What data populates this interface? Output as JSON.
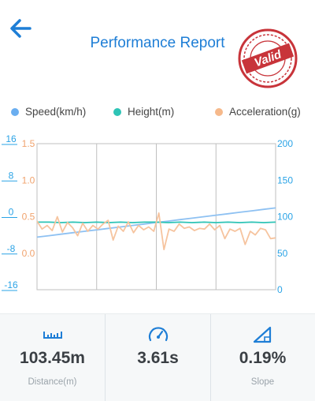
{
  "header": {
    "title": "Performance Report",
    "seal_text": "Valid"
  },
  "legend": [
    {
      "label": "Speed(km/h)",
      "color": "#6aaef0"
    },
    {
      "label": "Height(m)",
      "color": "#2ec4b6"
    },
    {
      "label": "Acceleration(g)",
      "color": "#f6b98b"
    }
  ],
  "chart_data": {
    "type": "line",
    "y_axes": {
      "height": {
        "ticks": [
          "16",
          "8",
          "0",
          "-8",
          "-16"
        ],
        "range": [
          -16,
          16
        ],
        "color": "#2aa3e6"
      },
      "acceleration": {
        "ticks": [
          "1.5",
          "1.0",
          "0.5",
          "0.0"
        ],
        "range": [
          -0.5,
          1.5
        ],
        "color": "#f0a36e"
      },
      "speed": {
        "ticks": [
          "200",
          "150",
          "100",
          "50",
          "0"
        ],
        "range": [
          0,
          200
        ],
        "color": "#2aa3e6"
      }
    },
    "grid": true,
    "series": [
      {
        "name": "Speed(km/h)",
        "axis": "speed",
        "color": "#8ec1f2",
        "values": [
          72,
          74,
          76,
          78,
          80,
          82,
          84,
          86,
          88,
          90,
          92,
          94,
          96,
          98,
          100,
          102,
          104,
          106,
          108,
          110,
          112
        ]
      },
      {
        "name": "Height(m)",
        "axis": "height",
        "color": "#2ec4b6",
        "values": [
          -1.2,
          -1.2,
          -1.3,
          -1.2,
          -1.3,
          -1.2,
          -1.3,
          -1.2,
          -1.3,
          -1.2,
          -1.2,
          -1.3,
          -1.2,
          -1.3,
          -1.2,
          -1.3,
          -1.2,
          -1.3,
          -1.2,
          -1.3,
          -1.2
        ]
      },
      {
        "name": "Acceleration(g)",
        "axis": "acceleration",
        "color": "#f6c49f",
        "values": [
          0.44,
          0.33,
          0.38,
          0.31,
          0.5,
          0.29,
          0.42,
          0.35,
          0.24,
          0.41,
          0.3,
          0.38,
          0.33,
          0.4,
          0.45,
          0.18,
          0.37,
          0.3,
          0.43,
          0.28,
          0.38,
          0.32,
          0.36,
          0.3,
          0.55,
          0.05,
          0.33,
          0.3,
          0.4,
          0.34,
          0.36,
          0.31,
          0.34,
          0.33,
          0.4,
          0.32,
          0.38,
          0.2,
          0.33,
          0.3,
          0.34,
          0.12,
          0.3,
          0.25,
          0.34,
          0.32,
          0.2,
          0.21
        ]
      }
    ]
  },
  "stats": [
    {
      "icon": "ruler-icon",
      "value": "103.45m",
      "label": "Distance(m)"
    },
    {
      "icon": "gauge-icon",
      "value": "3.61s",
      "label": ""
    },
    {
      "icon": "slope-icon",
      "value": "0.19%",
      "label": "Slope"
    }
  ]
}
